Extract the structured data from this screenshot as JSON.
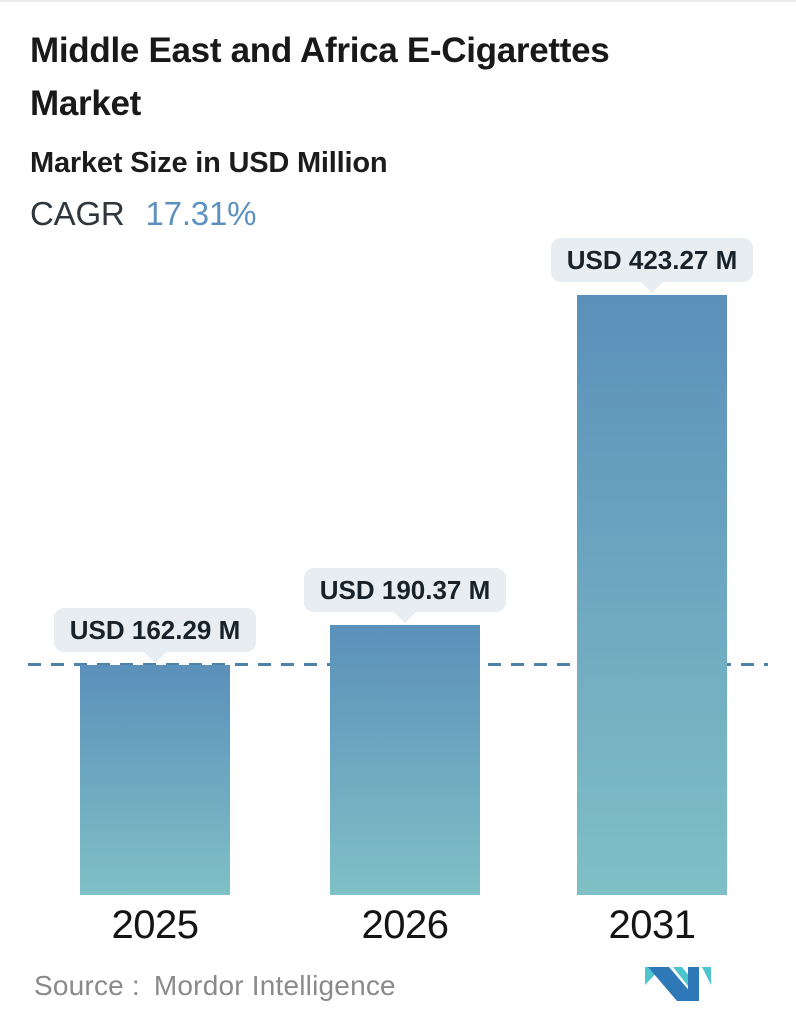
{
  "header": {
    "title_lines": [
      "Middle East and Africa E-Cigarettes",
      "Market"
    ]
  },
  "chart_data": {
    "type": "bar",
    "title": "Middle East and Africa E-Cigarettes Market",
    "subtitle": "Market Size in USD Million",
    "cagr_label": "CAGR",
    "cagr_value": "17.31%",
    "categories": [
      "2025",
      "2026",
      "2031"
    ],
    "values": [
      162.29,
      190.37,
      423.27
    ],
    "value_labels": [
      "USD 162.29 M",
      "USD 190.37 M",
      "USD 423.27 M"
    ],
    "unit": "USD Million",
    "ylim": [
      0,
      450
    ],
    "grid": false,
    "legend": false,
    "reference_line": {
      "value": 162.29,
      "style": "dashed"
    }
  },
  "footer": {
    "source_label": "Source :",
    "source_value": "Mordor Intelligence",
    "logo": "mordor-intelligence-logo"
  },
  "colors": {
    "accent_blue": "#5d91bf",
    "bar_gradient_top": "#5b90ba",
    "bar_gradient_bottom": "#7fc0c6",
    "dashed_line": "#4d82aa",
    "tooltip_bg": "#e7edf0",
    "tooltip_text": "#17222b",
    "logo_blue": "#2e78b8",
    "logo_teal": "#4cc5cd"
  }
}
